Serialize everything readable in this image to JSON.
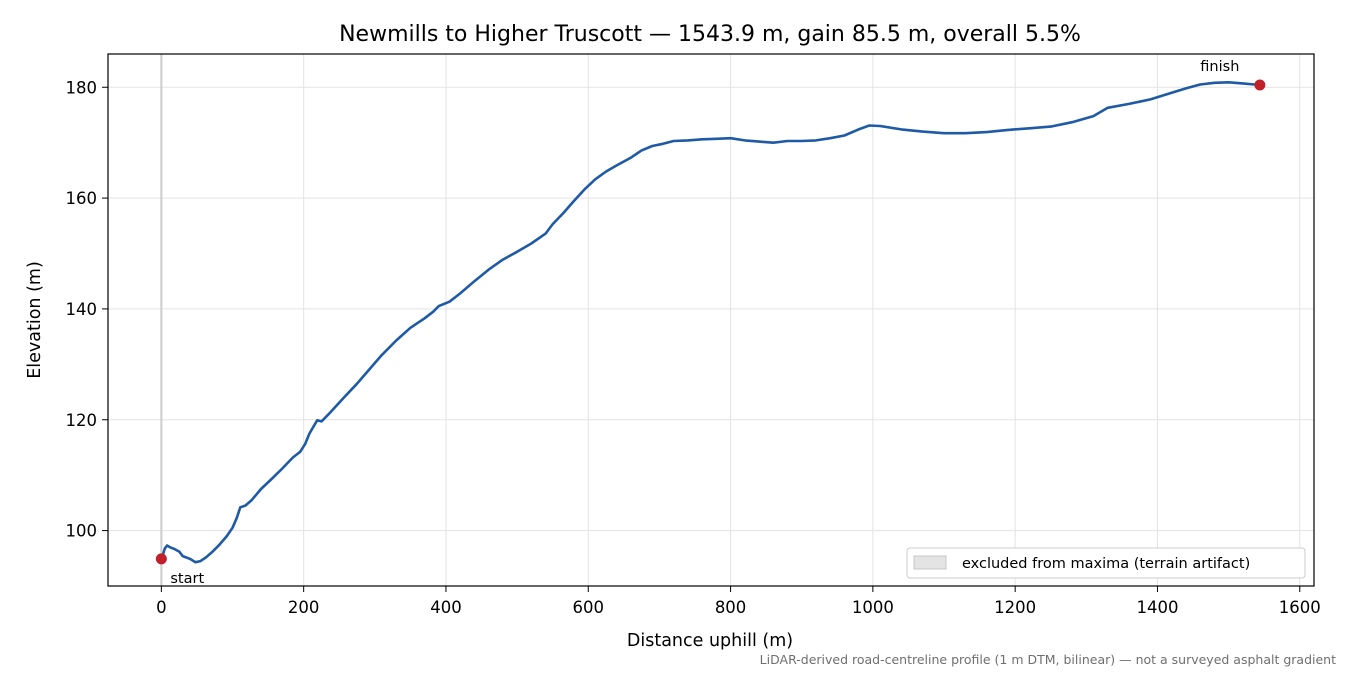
{
  "chart_data": {
    "type": "line",
    "title": "Newmills to Higher Truscott — 1543.9 m, gain 85.5 m, overall 5.5%",
    "xlabel": "Distance uphill (m)",
    "ylabel": "Elevation (m)",
    "xlim": [
      -75,
      1620
    ],
    "ylim": [
      90,
      186
    ],
    "x_ticks": [
      0,
      200,
      400,
      600,
      800,
      1000,
      1200,
      1400,
      1600
    ],
    "y_ticks": [
      100,
      120,
      140,
      160,
      180
    ],
    "grid": true,
    "legend_position": "lower-right",
    "excluded_region": {
      "x_start": -1.5,
      "x_end": 1.5,
      "label": "excluded from maxima (terrain artifact)"
    },
    "series": [
      {
        "color": "#1f5aa6",
        "points": [
          [
            0,
            94.9
          ],
          [
            3,
            96.0
          ],
          [
            5,
            96.8
          ],
          [
            8,
            97.3
          ],
          [
            12,
            97.0
          ],
          [
            18,
            96.7
          ],
          [
            25,
            96.2
          ],
          [
            30,
            95.4
          ],
          [
            40,
            94.9
          ],
          [
            48,
            94.3
          ],
          [
            55,
            94.5
          ],
          [
            63,
            95.2
          ],
          [
            72,
            96.2
          ],
          [
            82,
            97.5
          ],
          [
            92,
            99.0
          ],
          [
            100,
            100.5
          ],
          [
            106,
            102.3
          ],
          [
            111,
            104.2
          ],
          [
            118,
            104.5
          ],
          [
            127,
            105.5
          ],
          [
            140,
            107.5
          ],
          [
            155,
            109.3
          ],
          [
            170,
            111.2
          ],
          [
            185,
            113.2
          ],
          [
            195,
            114.2
          ],
          [
            202,
            115.6
          ],
          [
            208,
            117.5
          ],
          [
            214,
            118.8
          ],
          [
            219,
            119.9
          ],
          [
            225,
            119.7
          ],
          [
            235,
            121.0
          ],
          [
            255,
            123.8
          ],
          [
            275,
            126.5
          ],
          [
            295,
            129.5
          ],
          [
            310,
            131.7
          ],
          [
            330,
            134.3
          ],
          [
            350,
            136.6
          ],
          [
            370,
            138.3
          ],
          [
            382,
            139.5
          ],
          [
            390,
            140.5
          ],
          [
            405,
            141.3
          ],
          [
            420,
            142.8
          ],
          [
            440,
            145.0
          ],
          [
            460,
            147.1
          ],
          [
            480,
            148.9
          ],
          [
            500,
            150.3
          ],
          [
            520,
            151.8
          ],
          [
            540,
            153.6
          ],
          [
            550,
            155.3
          ],
          [
            565,
            157.3
          ],
          [
            580,
            159.5
          ],
          [
            595,
            161.6
          ],
          [
            610,
            163.4
          ],
          [
            625,
            164.8
          ],
          [
            640,
            165.9
          ],
          [
            660,
            167.3
          ],
          [
            675,
            168.6
          ],
          [
            690,
            169.4
          ],
          [
            705,
            169.8
          ],
          [
            720,
            170.3
          ],
          [
            740,
            170.4
          ],
          [
            760,
            170.6
          ],
          [
            780,
            170.7
          ],
          [
            800,
            170.8
          ],
          [
            820,
            170.4
          ],
          [
            840,
            170.2
          ],
          [
            860,
            170.0
          ],
          [
            880,
            170.3
          ],
          [
            900,
            170.3
          ],
          [
            920,
            170.4
          ],
          [
            940,
            170.8
          ],
          [
            960,
            171.3
          ],
          [
            980,
            172.4
          ],
          [
            995,
            173.1
          ],
          [
            1010,
            173.0
          ],
          [
            1040,
            172.4
          ],
          [
            1070,
            172.0
          ],
          [
            1100,
            171.7
          ],
          [
            1130,
            171.7
          ],
          [
            1160,
            171.9
          ],
          [
            1190,
            172.3
          ],
          [
            1220,
            172.6
          ],
          [
            1250,
            172.9
          ],
          [
            1280,
            173.7
          ],
          [
            1310,
            174.8
          ],
          [
            1330,
            176.3
          ],
          [
            1360,
            177.0
          ],
          [
            1390,
            177.8
          ],
          [
            1420,
            179.0
          ],
          [
            1440,
            179.8
          ],
          [
            1460,
            180.5
          ],
          [
            1480,
            180.8
          ],
          [
            1500,
            180.9
          ],
          [
            1520,
            180.7
          ],
          [
            1543.9,
            180.4
          ]
        ]
      }
    ],
    "markers": [
      {
        "label": "start",
        "x": 0,
        "y": 94.9,
        "color": "#c0202a"
      },
      {
        "label": "finish",
        "x": 1543.9,
        "y": 180.4,
        "color": "#c0202a"
      }
    ],
    "footnote": "LiDAR-derived road-centreline profile (1 m DTM, bilinear) — not a surveyed asphalt gradient"
  }
}
